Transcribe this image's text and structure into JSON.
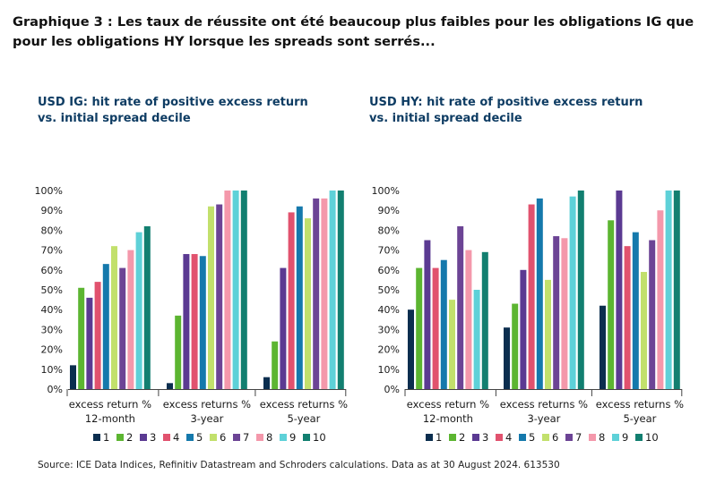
{
  "headline": "Graphique 3 : Les taux de réussite ont été beaucoup plus faibles pour les obligations IG que pour les obligations HY lorsque les spreads sont serrés...",
  "source": "Source: ICE Data Indices, Refinitiv Datastream and Schroders calculations. Data as at 30 August 2024. 613530",
  "colors": {
    "1": "#0b2e4f",
    "2": "#5cb531",
    "3": "#5b3a92",
    "4": "#e1526e",
    "5": "#1579ac",
    "6": "#c2e06c",
    "7": "#6c4495",
    "8": "#f498ab",
    "9": "#5ed1d8",
    "10": "#127f70"
  },
  "chart_data": [
    {
      "id": "ig",
      "type": "bar",
      "title_line1": "USD IG: hit rate of positive excess return",
      "title_line2": "vs. initial spread decile",
      "categories": [
        [
          "excess return %",
          "12-month"
        ],
        [
          "excess returns %",
          "3-year"
        ],
        [
          "excess returns %",
          "5-year"
        ]
      ],
      "yticks": [
        "0%",
        "10%",
        "20%",
        "30%",
        "40%",
        "50%",
        "60%",
        "70%",
        "80%",
        "90%",
        "100%"
      ],
      "ylim": [
        0,
        100
      ],
      "legend": [
        "1",
        "2",
        "3",
        "4",
        "5",
        "6",
        "7",
        "8",
        "9",
        "10"
      ],
      "series": [
        {
          "name": "1",
          "values": [
            12,
            3,
            6
          ]
        },
        {
          "name": "2",
          "values": [
            51,
            37,
            24
          ]
        },
        {
          "name": "3",
          "values": [
            46,
            68,
            61
          ]
        },
        {
          "name": "4",
          "values": [
            54,
            68,
            89
          ]
        },
        {
          "name": "5",
          "values": [
            63,
            67,
            92
          ]
        },
        {
          "name": "6",
          "values": [
            72,
            92,
            86
          ]
        },
        {
          "name": "7",
          "values": [
            61,
            93,
            96
          ]
        },
        {
          "name": "8",
          "values": [
            70,
            100,
            96
          ]
        },
        {
          "name": "9",
          "values": [
            79,
            100,
            100
          ]
        },
        {
          "name": "10",
          "values": [
            82,
            100,
            100
          ]
        }
      ]
    },
    {
      "id": "hy",
      "type": "bar",
      "title_line1": "USD HY: hit rate of positive excess return",
      "title_line2": "vs. initial spread decile",
      "categories": [
        [
          "excess return %",
          "12-month"
        ],
        [
          "excess returns %",
          "3-year"
        ],
        [
          "excess returns %",
          "5-year"
        ]
      ],
      "yticks": [
        "0%",
        "10%",
        "20%",
        "30%",
        "40%",
        "50%",
        "60%",
        "70%",
        "80%",
        "90%",
        "100%"
      ],
      "ylim": [
        0,
        100
      ],
      "legend": [
        "1",
        "2",
        "3",
        "4",
        "5",
        "6",
        "7",
        "8",
        "9",
        "10"
      ],
      "series": [
        {
          "name": "1",
          "values": [
            40,
            31,
            42
          ]
        },
        {
          "name": "2",
          "values": [
            61,
            43,
            85
          ]
        },
        {
          "name": "3",
          "values": [
            75,
            60,
            100
          ]
        },
        {
          "name": "4",
          "values": [
            61,
            93,
            72
          ]
        },
        {
          "name": "5",
          "values": [
            65,
            96,
            79
          ]
        },
        {
          "name": "6",
          "values": [
            45,
            55,
            59
          ]
        },
        {
          "name": "7",
          "values": [
            82,
            77,
            75
          ]
        },
        {
          "name": "8",
          "values": [
            70,
            76,
            90
          ]
        },
        {
          "name": "9",
          "values": [
            50,
            97,
            100
          ]
        },
        {
          "name": "10",
          "values": [
            69,
            100,
            100
          ]
        }
      ]
    }
  ]
}
